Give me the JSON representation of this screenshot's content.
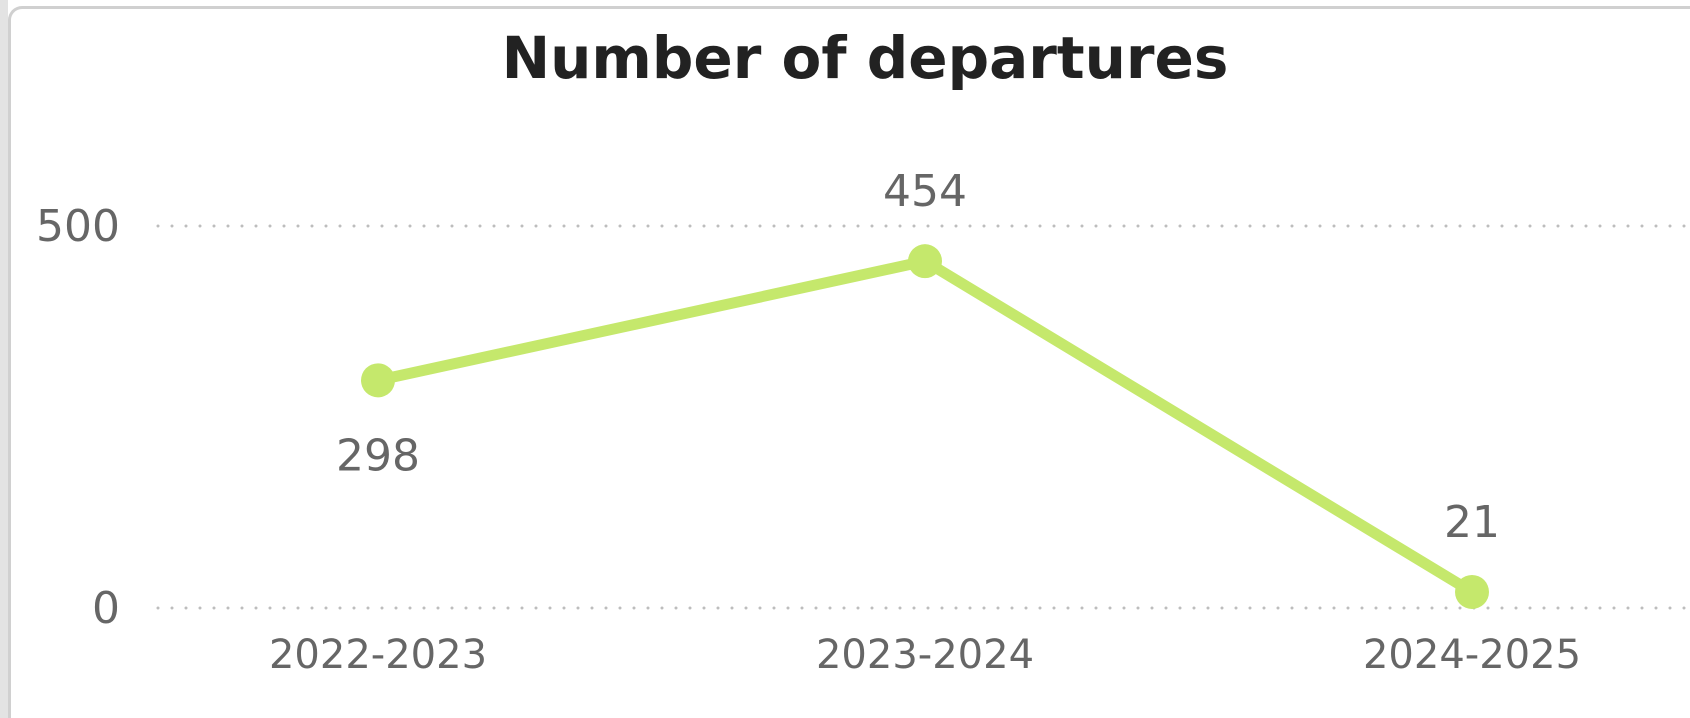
{
  "chart_data": {
    "type": "line",
    "title": "Number of departures",
    "xlabel": "",
    "ylabel": "",
    "categories": [
      "2022-2023",
      "2023-2024",
      "2024-2025"
    ],
    "series": [
      {
        "values": [
          298,
          454,
          21
        ],
        "color": "#c5e86c"
      }
    ],
    "y_ticks": [
      "0",
      "500"
    ],
    "ylim": [
      0,
      500
    ],
    "grid": true,
    "grid_style": "dotted",
    "data_labels": [
      "298",
      "454",
      "21"
    ]
  }
}
